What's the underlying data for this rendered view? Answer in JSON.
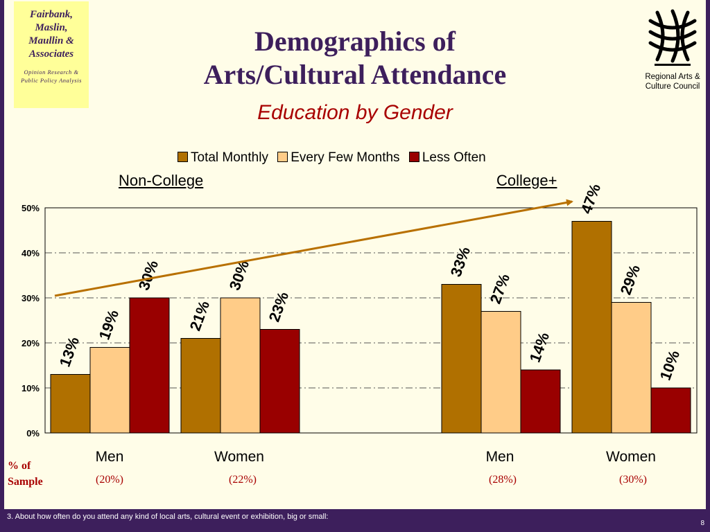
{
  "logo": {
    "lines": [
      "Fairbank,",
      "Maslin,",
      "Maullin &",
      "Associates"
    ],
    "tagline": [
      "Opinion Research &",
      "Public Policy Analysis"
    ]
  },
  "title_line1": "Demographics of",
  "title_line2": "Arts/Cultural Attendance",
  "subtitle": "Education by Gender",
  "council": {
    "line1": "Regional Arts &",
    "line2": "Culture Council"
  },
  "group_labels": {
    "non_college": "Non-College",
    "college": "College+"
  },
  "sample_label": {
    "line1": "% of",
    "line2": "Sample"
  },
  "samples": [
    "(20%)",
    "(22%)",
    "(28%)",
    "(30%)"
  ],
  "footer_text": "3. About how often do you attend any kind of local arts, cultural event or exhibition, big or small:",
  "page_number": "8",
  "colors": {
    "total_monthly": "#b07000",
    "every_few_months": "#ffcc88",
    "less_often": "#990000",
    "trend_arrow": "#b87000",
    "brand": "#3d1f5c",
    "accent": "#a80000"
  },
  "chart_data": {
    "type": "bar",
    "categories": [
      "Men",
      "Women",
      "Men",
      "Women"
    ],
    "groups": [
      "Non-College",
      "Non-College",
      "College+",
      "College+"
    ],
    "series": [
      {
        "name": "Total Monthly",
        "values": [
          13,
          21,
          33,
          47
        ],
        "labels": [
          "13%",
          "21%",
          "33%",
          "47%"
        ]
      },
      {
        "name": "Every Few Months",
        "values": [
          19,
          30,
          27,
          29
        ],
        "labels": [
          "19%",
          "30%",
          "27%",
          "29%"
        ]
      },
      {
        "name": "Less Often",
        "values": [
          30,
          23,
          14,
          10
        ],
        "labels": [
          "30%",
          "23%",
          "14%",
          "10%"
        ]
      }
    ],
    "yticks": [
      "0%",
      "10%",
      "20%",
      "30%",
      "40%",
      "50%"
    ],
    "ylim": [
      0,
      50
    ],
    "grid": true,
    "legend_position": "top",
    "trend_arrow": "upward arrow from Non-College Men toward College+ Women Total Monthly"
  }
}
